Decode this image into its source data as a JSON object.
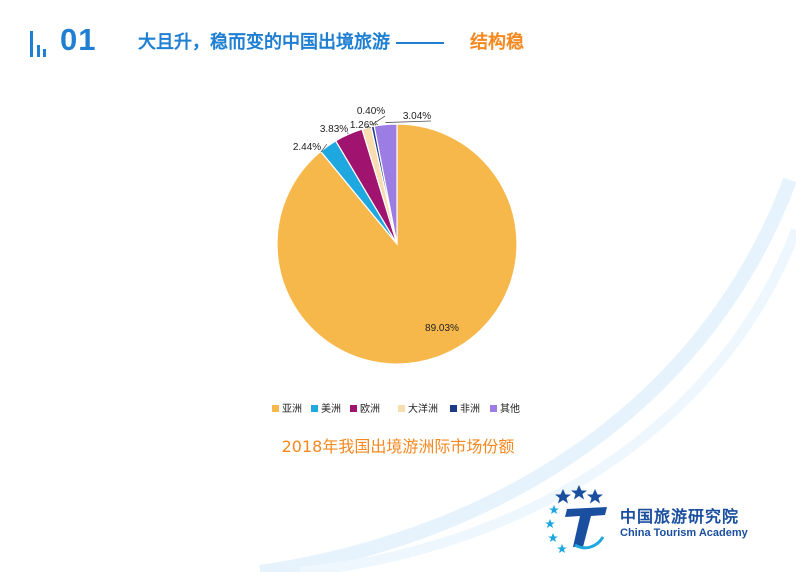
{
  "header": {
    "number": "01",
    "title": "大且升，稳而变的中国出境旅游",
    "subtitle": "结构稳"
  },
  "chart_data": {
    "type": "pie",
    "categories": [
      "亚洲",
      "美洲",
      "欧洲",
      "大洋洲",
      "非洲",
      "其他"
    ],
    "values": [
      89.03,
      2.44,
      3.83,
      1.26,
      0.4,
      3.04
    ],
    "data_labels": [
      "89.03%",
      "2.44%",
      "3.83%",
      "1.26%",
      "0.40%",
      "3.04%"
    ],
    "colors": [
      "#f7b84b",
      "#1fa8e0",
      "#a0136e",
      "#f8ddb0",
      "#1b3a8a",
      "#9b7de3"
    ],
    "legend_position": "bottom",
    "title": "2018年我国出境游洲际市场份额"
  },
  "logo": {
    "name": "中国旅游研究院",
    "english": "China Tourism Academy",
    "colors": {
      "primary": "#1a4fa0",
      "accent": "#1fa8e0"
    }
  }
}
